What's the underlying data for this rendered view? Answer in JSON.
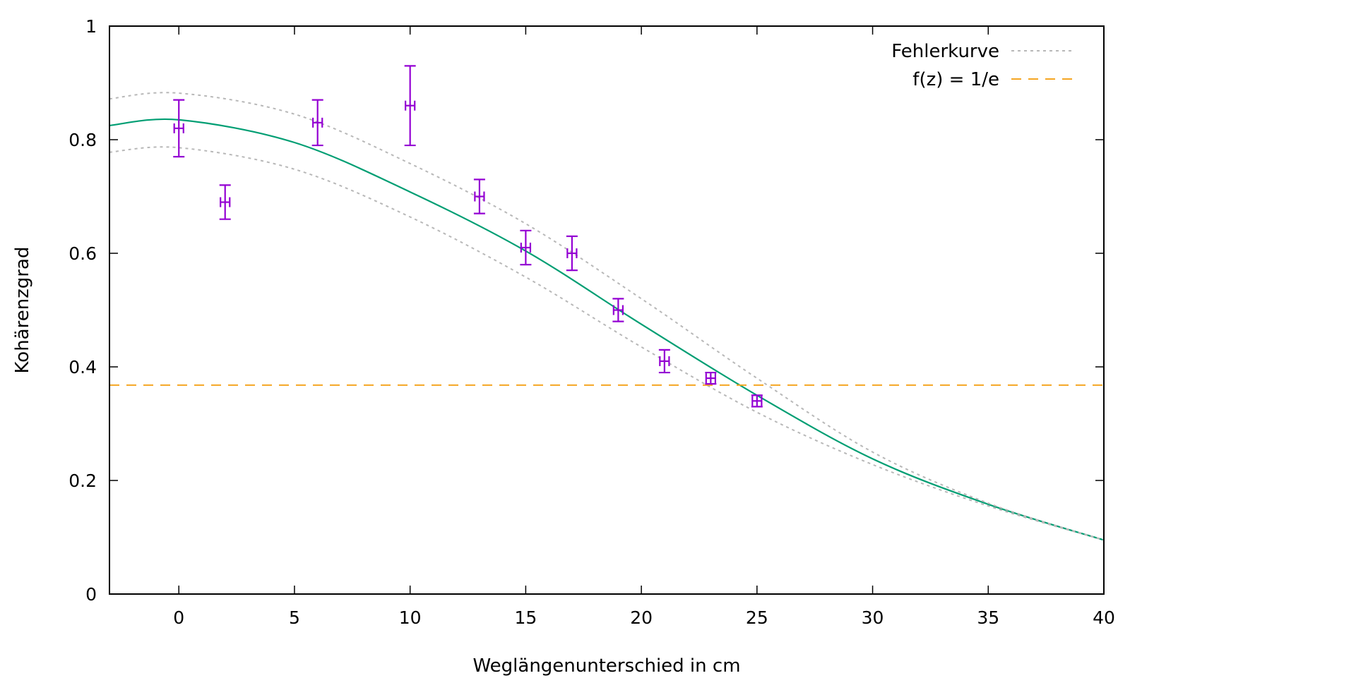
{
  "chart_data": {
    "type": "scatter",
    "title": "",
    "xlabel": "Weglängenunterschied in cm",
    "ylabel": "Kohärenzgrad",
    "xlim": [
      -3,
      40
    ],
    "ylim": [
      0,
      1
    ],
    "x_ticks": [
      "0",
      "5",
      "10",
      "15",
      "20",
      "25",
      "30",
      "35",
      "40"
    ],
    "y_ticks": [
      "0",
      "0.2",
      "0.4",
      "0.6",
      "0.8",
      "1"
    ],
    "x_tick_values": [
      0,
      5,
      10,
      15,
      20,
      25,
      30,
      35,
      40
    ],
    "y_tick_values": [
      0,
      0.2,
      0.4,
      0.6,
      0.8,
      1
    ],
    "grid": false,
    "legend_position": "top-right",
    "colors": {
      "points": "#9400d3",
      "fit": "#009e73",
      "error_curve": "#b8b8b8",
      "threshold": "#f5a623"
    },
    "series": [
      {
        "kind": "points-with-errorbars",
        "x": [
          0,
          2,
          6,
          10,
          13,
          15,
          17,
          19,
          21,
          23,
          25
        ],
        "y": [
          0.82,
          0.69,
          0.83,
          0.86,
          0.7,
          0.61,
          0.6,
          0.5,
          0.41,
          0.38,
          0.34
        ],
        "y_err": [
          0.05,
          0.03,
          0.04,
          0.07,
          0.03,
          0.03,
          0.03,
          0.02,
          0.02,
          0.01,
          0.01
        ],
        "x_err": [
          0.2,
          0.2,
          0.2,
          0.2,
          0.2,
          0.2,
          0.2,
          0.2,
          0.2,
          0.2,
          0.2
        ]
      },
      {
        "kind": "fit-curve",
        "x": [
          -3,
          0,
          5,
          10,
          15,
          20,
          25,
          30,
          35,
          40
        ],
        "y": [
          0.825,
          0.835,
          0.795,
          0.708,
          0.604,
          0.475,
          0.35,
          0.238,
          0.158,
          0.095
        ]
      },
      {
        "name": "Fehlerkurve",
        "kind": "upper-error-curve",
        "x": [
          -3,
          0,
          5,
          10,
          15,
          20,
          25,
          30,
          35,
          40
        ],
        "y": [
          0.872,
          0.882,
          0.845,
          0.758,
          0.652,
          0.52,
          0.38,
          0.25,
          0.16,
          0.095
        ]
      },
      {
        "name": "Fehlerkurve",
        "kind": "lower-error-curve",
        "x": [
          -3,
          0,
          5,
          10,
          15,
          20,
          25,
          30,
          35,
          40
        ],
        "y": [
          0.778,
          0.786,
          0.748,
          0.664,
          0.558,
          0.435,
          0.32,
          0.228,
          0.155,
          0.095
        ]
      },
      {
        "name": "f(z) = 1/e",
        "kind": "horizontal-line",
        "y": 0.3679
      }
    ],
    "legend": [
      {
        "label": "Fehlerkurve",
        "style": "dotted"
      },
      {
        "label": "f(z) = 1/e",
        "style": "dashed"
      }
    ]
  }
}
